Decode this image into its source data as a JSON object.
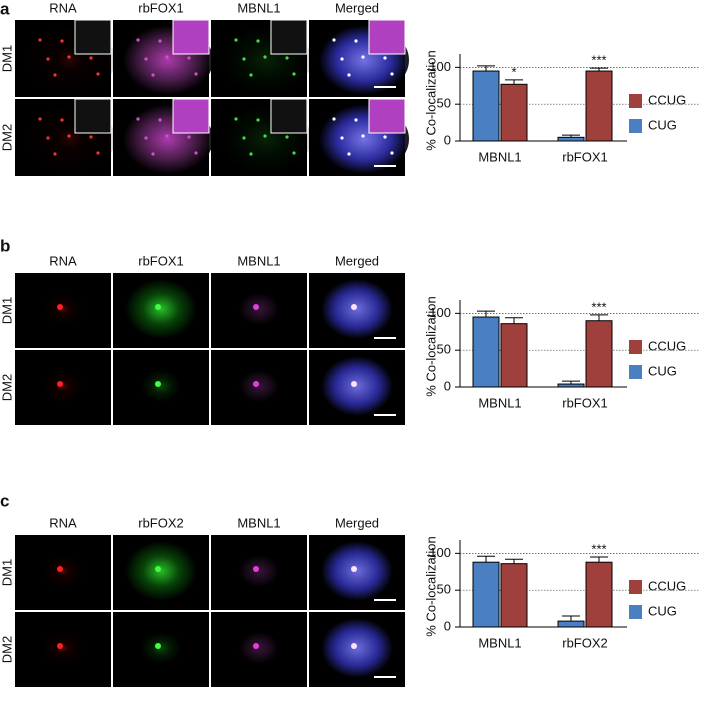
{
  "panels": [
    {
      "label": "a",
      "columns": [
        "RNA",
        "rbFOX1",
        "MBNL1",
        "Merged"
      ],
      "rows": [
        "DM1",
        "DM2"
      ]
    },
    {
      "label": "b",
      "columns": [
        "RNA",
        "rbFOX1",
        "MBNL1",
        "Merged"
      ],
      "rows": [
        "DM1",
        "DM2"
      ]
    },
    {
      "label": "c",
      "columns": [
        "RNA",
        "rbFOX2",
        "MBNL1",
        "Merged"
      ],
      "rows": [
        "DM1",
        "DM2"
      ]
    }
  ],
  "chart_data": [
    {
      "type": "bar",
      "y_label": "% Co-localization",
      "categories": [
        "MBNL1",
        "rbFOX1"
      ],
      "ylim": [
        0,
        110
      ],
      "yticks": [
        0,
        50,
        100
      ],
      "grid": true,
      "series": [
        {
          "name": "CUG",
          "color": "#4a7fc1",
          "values": [
            95,
            5
          ],
          "errors": [
            7,
            3
          ]
        },
        {
          "name": "CCUG",
          "color": "#a0403c",
          "values": [
            77,
            95
          ],
          "errors": [
            6,
            4
          ],
          "significance": [
            "*",
            "***"
          ]
        }
      ]
    },
    {
      "type": "bar",
      "y_label": "% Co-localization",
      "categories": [
        "MBNL1",
        "rbFOX1"
      ],
      "ylim": [
        0,
        110
      ],
      "yticks": [
        0,
        50,
        100
      ],
      "grid": true,
      "series": [
        {
          "name": "CUG",
          "color": "#4a7fc1",
          "values": [
            95,
            4
          ],
          "errors": [
            8,
            4
          ]
        },
        {
          "name": "CCUG",
          "color": "#a0403c",
          "values": [
            86,
            90
          ],
          "errors": [
            8,
            8
          ],
          "significance": [
            null,
            "***"
          ]
        }
      ]
    },
    {
      "type": "bar",
      "y_label": "% Co-localization",
      "categories": [
        "MBNL1",
        "rbFOX2"
      ],
      "ylim": [
        0,
        110
      ],
      "yticks": [
        0,
        50,
        100
      ],
      "grid": true,
      "series": [
        {
          "name": "CUG",
          "color": "#4a7fc1",
          "values": [
            88,
            8
          ],
          "errors": [
            8,
            7
          ]
        },
        {
          "name": "CCUG",
          "color": "#a0403c",
          "values": [
            86,
            88
          ],
          "errors": [
            6,
            7
          ],
          "significance": [
            null,
            "***"
          ]
        }
      ]
    }
  ]
}
